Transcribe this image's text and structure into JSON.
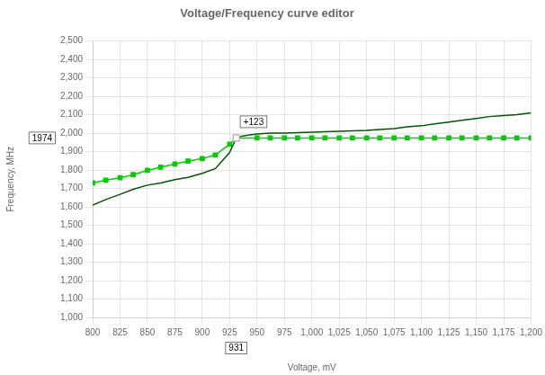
{
  "chart_data": {
    "type": "line",
    "title": "Voltage/Frequency curve editor",
    "x_label": "Voltage, mV",
    "y_label": "Frequency, MHz",
    "xlim": [
      800,
      1200
    ],
    "ylim": [
      1000,
      2500
    ],
    "xticks": [
      800,
      825,
      850,
      875,
      900,
      925,
      950,
      975,
      1000,
      1025,
      1050,
      1075,
      1100,
      1125,
      1150,
      1175,
      1200
    ],
    "yticks": [
      1000,
      1100,
      1200,
      1300,
      1400,
      1500,
      1600,
      1700,
      1800,
      1900,
      2000,
      2100,
      2200,
      2300,
      2400,
      2500
    ],
    "grid": true,
    "series": [
      {
        "color": "#005500",
        "marker": "none",
        "x": [
          800,
          812,
          825,
          837,
          850,
          862,
          875,
          887,
          900,
          912,
          925,
          931,
          937,
          945,
          950,
          962,
          975,
          987,
          1000,
          1012,
          1025,
          1037,
          1050,
          1062,
          1075,
          1087,
          1100,
          1112,
          1125,
          1137,
          1150,
          1162,
          1175,
          1187,
          1200
        ],
        "values": [
          1610,
          1640,
          1668,
          1695,
          1718,
          1730,
          1748,
          1760,
          1782,
          1808,
          1895,
          1974,
          1985,
          1992,
          1996,
          2000,
          2000,
          2003,
          2005,
          2008,
          2010,
          2012,
          2015,
          2020,
          2025,
          2035,
          2040,
          2050,
          2060,
          2070,
          2080,
          2090,
          2095,
          2100,
          2110
        ]
      },
      {
        "color": "#00cc00",
        "marker": "square",
        "x": [
          800,
          812,
          825,
          837,
          850,
          862,
          875,
          887,
          900,
          912,
          925,
          931,
          950,
          962,
          975,
          987,
          1000,
          1012,
          1025,
          1037,
          1050,
          1062,
          1075,
          1087,
          1100,
          1112,
          1125,
          1137,
          1150,
          1162,
          1175,
          1187,
          1200
        ],
        "values": [
          1730,
          1745,
          1758,
          1775,
          1798,
          1815,
          1833,
          1848,
          1862,
          1882,
          1940,
          1974,
          1974,
          1974,
          1974,
          1974,
          1974,
          1974,
          1974,
          1974,
          1974,
          1974,
          1974,
          1974,
          1974,
          1974,
          1974,
          1974,
          1974,
          1974,
          1974,
          1974,
          1974
        ]
      }
    ],
    "annotations": [
      {
        "text": "+123",
        "x": 931,
        "y": 1974
      },
      {
        "text": "931",
        "x": 931
      },
      {
        "text": "1974",
        "y": 1974
      }
    ]
  }
}
